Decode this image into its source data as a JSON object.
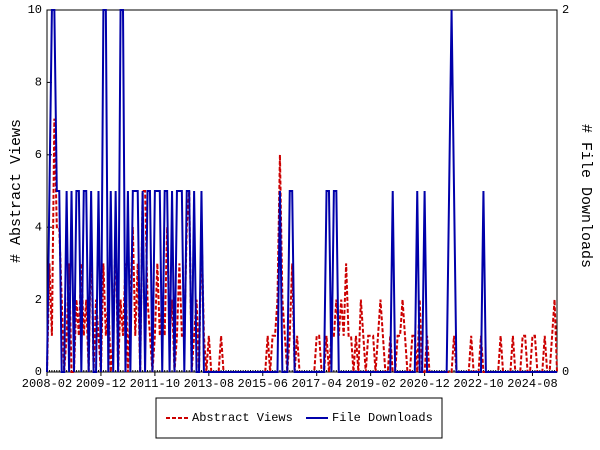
{
  "chart_data": {
    "type": "line",
    "x": [
      "2008-02",
      "2008-03",
      "2008-04",
      "2008-05",
      "2008-06",
      "2008-07",
      "2008-08",
      "2008-09",
      "2008-10",
      "2008-11",
      "2008-12",
      "2009-01",
      "2009-02",
      "2009-03",
      "2009-04",
      "2009-05",
      "2009-06",
      "2009-07",
      "2009-08",
      "2009-09",
      "2009-10",
      "2009-11",
      "2009-12",
      "2010-01",
      "2010-02",
      "2010-03",
      "2010-04",
      "2010-05",
      "2010-06",
      "2010-07",
      "2010-08",
      "2010-09",
      "2010-10",
      "2010-11",
      "2010-12",
      "2011-01",
      "2011-02",
      "2011-03",
      "2011-04",
      "2011-05",
      "2011-06",
      "2011-07",
      "2011-08",
      "2011-09",
      "2011-10",
      "2011-11",
      "2011-12",
      "2012-01",
      "2012-02",
      "2012-03",
      "2012-04",
      "2012-05",
      "2012-06",
      "2012-07",
      "2012-08",
      "2012-09",
      "2012-10",
      "2012-11",
      "2012-12",
      "2013-01",
      "2013-02",
      "2013-03",
      "2013-04",
      "2013-05",
      "2013-06",
      "2013-07",
      "2013-08",
      "2013-09",
      "2013-10",
      "2013-11",
      "2013-12",
      "2014-01",
      "2014-02",
      "2014-03",
      "2014-04",
      "2014-05",
      "2014-06",
      "2014-07",
      "2014-08",
      "2014-09",
      "2014-10",
      "2014-11",
      "2014-12",
      "2015-01",
      "2015-02",
      "2015-03",
      "2015-04",
      "2015-05",
      "2015-06",
      "2015-07",
      "2015-08",
      "2015-09",
      "2015-10",
      "2015-11",
      "2015-12",
      "2016-01",
      "2016-02",
      "2016-03",
      "2016-04",
      "2016-05",
      "2016-06",
      "2016-07",
      "2016-08",
      "2016-09",
      "2016-10",
      "2016-11",
      "2016-12",
      "2017-01",
      "2017-02",
      "2017-03",
      "2017-04",
      "2017-05",
      "2017-06",
      "2017-07",
      "2017-08",
      "2017-09",
      "2017-10",
      "2017-11",
      "2017-12",
      "2018-01",
      "2018-02",
      "2018-03",
      "2018-04",
      "2018-05",
      "2018-06",
      "2018-07",
      "2018-08",
      "2018-09",
      "2018-10",
      "2018-11",
      "2018-12",
      "2019-01",
      "2019-02",
      "2019-03",
      "2019-04",
      "2019-05",
      "2019-06",
      "2019-07",
      "2019-08",
      "2019-09",
      "2019-10",
      "2019-11",
      "2019-12",
      "2020-01",
      "2020-02",
      "2020-03",
      "2020-04",
      "2020-05",
      "2020-06",
      "2020-07",
      "2020-08",
      "2020-09",
      "2020-10",
      "2020-11",
      "2020-12",
      "2021-01",
      "2021-02",
      "2021-03",
      "2021-04",
      "2021-05",
      "2021-06",
      "2021-07",
      "2021-08",
      "2021-09",
      "2021-10",
      "2021-11",
      "2021-12",
      "2022-01",
      "2022-02",
      "2022-03",
      "2022-04",
      "2022-05",
      "2022-06",
      "2022-07",
      "2022-08",
      "2022-09",
      "2022-10",
      "2022-11",
      "2022-12",
      "2023-01",
      "2023-02",
      "2023-03",
      "2023-04",
      "2023-05",
      "2023-06",
      "2023-07",
      "2023-08",
      "2023-09",
      "2023-10",
      "2023-11",
      "2023-12",
      "2024-01",
      "2024-02",
      "2024-03",
      "2024-04",
      "2024-05",
      "2024-06",
      "2024-07",
      "2024-08",
      "2024-09",
      "2024-10",
      "2024-11",
      "2024-12",
      "2025-01",
      "2025-02",
      "2025-03",
      "2025-04",
      "2025-05",
      "2025-06"
    ],
    "xticks": [
      "2008-02",
      "2009-12",
      "2011-10",
      "2013-08",
      "2015-06",
      "2017-04",
      "2019-02",
      "2020-12",
      "2022-10",
      "2024-08"
    ],
    "ylabel": "# Abstract Views",
    "y2label": "# File Downloads",
    "ylim": [
      0,
      10
    ],
    "yticks": [
      0,
      2,
      4,
      6,
      8,
      10
    ],
    "y2lim": [
      0,
      2
    ],
    "y2ticks": [
      0,
      2
    ],
    "legend": "bottom",
    "series": [
      {
        "name": "Abstract Views",
        "color": "#cc0000",
        "dash": true,
        "values": [
          0,
          3,
          1,
          7,
          4,
          4,
          2,
          0,
          1,
          3,
          0,
          0,
          2,
          1,
          3,
          1,
          2,
          0,
          4,
          0,
          2,
          1,
          0,
          3,
          1,
          2,
          0,
          1,
          4,
          0,
          2,
          1,
          3,
          0,
          2,
          4,
          1,
          3,
          0,
          5,
          5,
          2,
          1,
          0,
          1,
          3,
          1,
          2,
          1,
          4,
          1,
          2,
          0,
          1,
          3,
          1,
          1,
          4,
          5,
          0,
          1,
          2,
          0,
          4,
          1,
          0,
          1,
          0,
          0,
          0,
          0,
          1,
          0,
          0,
          0,
          0,
          0,
          0,
          0,
          0,
          0,
          0,
          0,
          0,
          0,
          0,
          0,
          0,
          0,
          0,
          1,
          0,
          1,
          1,
          2,
          6,
          2,
          1,
          0,
          1,
          3,
          0,
          1,
          0,
          0,
          0,
          0,
          0,
          0,
          0,
          1,
          1,
          0,
          0,
          1,
          0,
          1,
          1,
          2,
          1,
          2,
          1,
          3,
          1,
          1,
          0,
          1,
          0,
          2,
          1,
          0,
          1,
          1,
          1,
          0,
          1,
          2,
          1,
          0,
          0,
          1,
          0,
          0,
          1,
          1,
          2,
          1,
          0,
          0,
          1,
          1,
          0,
          2,
          0,
          0,
          1,
          0,
          0,
          0,
          0,
          0,
          0,
          0,
          0,
          0,
          0,
          1,
          0,
          0,
          0,
          0,
          0,
          0,
          1,
          0,
          0,
          0,
          1,
          0,
          0,
          0,
          0,
          0,
          0,
          0,
          1,
          0,
          0,
          0,
          0,
          1,
          0,
          0,
          0,
          1,
          1,
          0,
          0,
          1,
          1,
          0,
          0,
          0,
          1,
          0,
          0,
          1,
          2,
          0
        ]
      },
      {
        "name": "File Downloads",
        "color": "#0000aa",
        "axis": "y2",
        "values": [
          0,
          1,
          2,
          2,
          1,
          1,
          0,
          0,
          1,
          0,
          1,
          0,
          1,
          1,
          0,
          1,
          1,
          0,
          1,
          0,
          0,
          1,
          0,
          2,
          2,
          0,
          1,
          0,
          1,
          0,
          2,
          2,
          0,
          1,
          0,
          1,
          1,
          1,
          0,
          1,
          0,
          1,
          1,
          0,
          1,
          1,
          1,
          0,
          1,
          1,
          0,
          1,
          0,
          1,
          1,
          1,
          0,
          1,
          1,
          0,
          1,
          0,
          0,
          1,
          0,
          0,
          0,
          0,
          0,
          0,
          0,
          0,
          0,
          0,
          0,
          0,
          0,
          0,
          0,
          0,
          0,
          0,
          0,
          0,
          0,
          0,
          0,
          0,
          0,
          0,
          0,
          0,
          0,
          0,
          0,
          1,
          0,
          0,
          0,
          1,
          1,
          0,
          0,
          0,
          0,
          0,
          0,
          0,
          0,
          0,
          0,
          0,
          0,
          0,
          1,
          1,
          0,
          1,
          1,
          0,
          0,
          0,
          0,
          0,
          0,
          0,
          0,
          0,
          0,
          0,
          0,
          0,
          0,
          0,
          0,
          0,
          0,
          0,
          0,
          0,
          0,
          1,
          0,
          0,
          0,
          0,
          0,
          0,
          0,
          0,
          0,
          1,
          0,
          0,
          1,
          0,
          0,
          0,
          0,
          0,
          0,
          0,
          0,
          0,
          1,
          2,
          1,
          0,
          0,
          0,
          0,
          0,
          0,
          0,
          0,
          0,
          0,
          0,
          1,
          0,
          0,
          0,
          0,
          0,
          0,
          0,
          0,
          0,
          0,
          0,
          0,
          0,
          0,
          0,
          0,
          0,
          0,
          0,
          0,
          0,
          0,
          0,
          0,
          0,
          0,
          0,
          0,
          0,
          0
        ]
      }
    ]
  }
}
